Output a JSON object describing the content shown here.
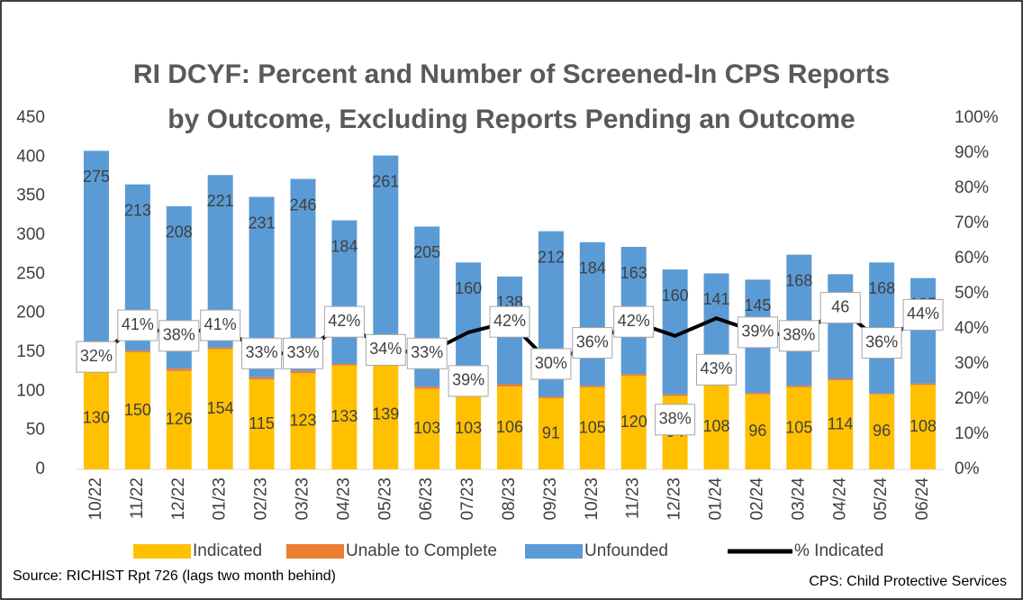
{
  "chart_data": {
    "type": "bar",
    "stacked": true,
    "title": [
      "RI DCYF: Percent and Number of Screened-In CPS Reports",
      "by Outcome, Excluding Reports Pending an Outcome"
    ],
    "categories": [
      "10/22",
      "11/22",
      "12/22",
      "01/23",
      "02/23",
      "03/23",
      "04/23",
      "05/23",
      "06/23",
      "07/23",
      "08/23",
      "09/23",
      "10/23",
      "11/23",
      "12/23",
      "01/24",
      "02/24",
      "03/24",
      "04/24",
      "05/24",
      "06/24"
    ],
    "series": [
      {
        "name": "Indicated",
        "color": "#ffc000",
        "values": [
          130,
          150,
          126,
          154,
          115,
          123,
          133,
          139,
          103,
          103,
          106,
          91,
          105,
          120,
          94,
          108,
          96,
          105,
          114,
          96,
          108
        ]
      },
      {
        "name": "Unable to Complete",
        "color": "#ed7d31",
        "values": [
          3,
          2,
          3,
          2,
          3,
          3,
          2,
          2,
          3,
          2,
          3,
          2,
          2,
          2,
          2,
          2,
          2,
          2,
          2,
          1,
          2
        ]
      },
      {
        "name": "Unfounded",
        "color": "#5b9bd5",
        "values": [
          275,
          213,
          208,
          221,
          231,
          246,
          184,
          261,
          205,
          160,
          138,
          212,
          184,
          163,
          160,
          141,
          145,
          168,
          134,
          168,
          135
        ]
      },
      {
        "name": "% Indicated",
        "type": "line",
        "axis": "y2",
        "color": "#000000",
        "values": [
          32,
          41,
          38,
          41,
          33,
          33,
          42,
          34,
          33,
          39,
          42,
          30,
          36,
          42,
          38,
          43,
          39,
          38,
          46,
          36,
          44
        ],
        "value_labels": [
          "32%",
          "41%",
          "38%",
          "41%",
          "33%",
          "33%",
          "42%",
          "34%",
          "33%",
          "39%",
          "42%",
          "30%",
          "36%",
          "42%",
          "38%",
          "43%",
          "39%",
          "38%",
          "46",
          "36%",
          "44%"
        ]
      }
    ],
    "ylim": [
      0,
      450
    ],
    "yticks": [
      0,
      50,
      100,
      150,
      200,
      250,
      300,
      350,
      400,
      450
    ],
    "y2lim": [
      0,
      100
    ],
    "y2ticks": [
      {
        "value": 0,
        "label": "0%"
      },
      {
        "value": 10,
        "label": "10%"
      },
      {
        "value": 20,
        "label": "20%"
      },
      {
        "value": 30,
        "label": "30%"
      },
      {
        "value": 40,
        "label": "40%"
      },
      {
        "value": 50,
        "label": "50%"
      },
      {
        "value": 60,
        "label": "60%"
      },
      {
        "value": 70,
        "label": "70%"
      },
      {
        "value": 80,
        "label": "80%"
      },
      {
        "value": 90,
        "label": "90%"
      },
      {
        "value": 100,
        "label": "100%"
      }
    ],
    "source": "Source: RICHIST Rpt 726 (lags two month behind)",
    "footnote": "CPS: Child Protective Services"
  }
}
